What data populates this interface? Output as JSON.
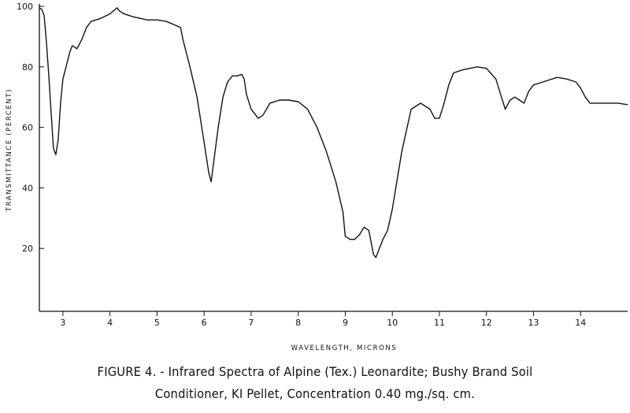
{
  "caption": {
    "line1": "FIGURE 4. - Infrared Spectra of Alpine (Tex.) Leonardite; Bushy Brand Soil",
    "line2": "Conditioner, KI Pellet, Concentration 0.40 mg./sq. cm."
  },
  "chart_data": {
    "type": "line",
    "title": "",
    "xlabel": "WAVELENGTH, MICRONS",
    "ylabel": "TRANSMITTANCE (PERCENT)",
    "xlim": [
      2.5,
      15.0
    ],
    "ylim": [
      0,
      100
    ],
    "x_ticks": [
      3,
      4,
      5,
      6,
      7,
      8,
      9,
      10,
      11,
      12,
      13,
      14
    ],
    "y_ticks": [
      20,
      40,
      60,
      80,
      100
    ],
    "grid": false,
    "series": [
      {
        "x": [
          2.5,
          2.55,
          2.6,
          2.65,
          2.7,
          2.75,
          2.8,
          2.85,
          2.9,
          2.95,
          3.0,
          3.1,
          3.15,
          3.2,
          3.3,
          3.4,
          3.5,
          3.6,
          3.8,
          4.0,
          4.15,
          4.2,
          4.3,
          4.5,
          4.8,
          5.0,
          5.2,
          5.5,
          5.55,
          5.7,
          5.85,
          6.0,
          6.1,
          6.15,
          6.2,
          6.3,
          6.4,
          6.5,
          6.6,
          6.7,
          6.8,
          6.85,
          6.9,
          7.0,
          7.1,
          7.15,
          7.25,
          7.4,
          7.6,
          7.8,
          8.0,
          8.2,
          8.4,
          8.6,
          8.8,
          8.95,
          9.0,
          9.1,
          9.2,
          9.3,
          9.4,
          9.5,
          9.6,
          9.65,
          9.7,
          9.8,
          9.9,
          10.0,
          10.2,
          10.4,
          10.6,
          10.8,
          10.9,
          11.0,
          11.1,
          11.2,
          11.3,
          11.5,
          11.8,
          12.0,
          12.2,
          12.3,
          12.4,
          12.5,
          12.6,
          12.7,
          12.8,
          12.9,
          13.0,
          13.2,
          13.5,
          13.7,
          13.9,
          14.0,
          14.1,
          14.2,
          14.5,
          14.8,
          15.0
        ],
        "y": [
          99.5,
          99,
          97,
          88,
          77,
          65,
          53,
          51,
          56,
          68,
          76,
          82,
          85,
          87,
          86,
          89,
          93,
          95,
          96,
          97.5,
          99.5,
          98.5,
          97.5,
          96.5,
          95.5,
          95.5,
          95,
          93,
          89,
          80,
          70,
          55,
          45,
          42,
          48,
          60,
          70,
          75,
          77,
          77,
          77.5,
          76,
          71,
          66,
          64,
          63,
          64,
          68,
          69,
          69,
          68.5,
          66,
          60,
          52,
          42,
          32,
          24,
          23,
          23,
          24.5,
          27,
          26,
          18,
          17,
          19,
          23,
          26,
          33,
          52,
          66,
          68,
          66,
          63,
          63,
          68,
          74,
          78,
          79,
          80,
          79.5,
          76,
          71,
          66,
          69,
          70,
          69,
          68,
          72,
          74,
          75,
          76.5,
          76,
          75,
          73,
          70,
          68,
          68,
          68,
          67.5
        ]
      }
    ]
  }
}
